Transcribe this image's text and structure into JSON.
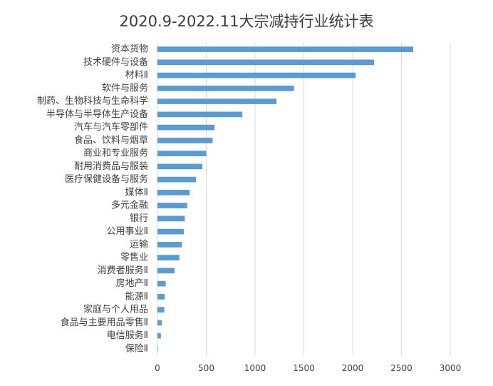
{
  "chart_data": {
    "type": "bar",
    "orientation": "horizontal",
    "title": "2020.9-2022.11大宗减持行业统计表",
    "xlabel": "",
    "ylabel": "",
    "xlim": [
      0,
      3000
    ],
    "xticks": [
      "0",
      "500",
      "1000",
      "1500",
      "2000",
      "2500",
      "3000"
    ],
    "grid": true,
    "legend": "none",
    "bar_color": "#5b9bd5",
    "grid_color": "#d9d9d9",
    "categories": [
      "资本货物",
      "技术硬件与设备",
      "材料Ⅱ",
      "软件与服务",
      "制药、生物科技与生命科学",
      "半导体与半导体生产设备",
      "汽车与汽车零部件",
      "食品、饮料与烟草",
      "商业和专业服务",
      "耐用消费品与服装",
      "医疗保健设备与服务",
      "媒体Ⅱ",
      "多元金融",
      "银行",
      "公用事业Ⅱ",
      "运输",
      "零售业",
      "消费者服务Ⅱ",
      "房地产Ⅱ",
      "能源Ⅱ",
      "家庭与个人用品",
      "食品与主要用品零售Ⅱ",
      "电信服务Ⅱ",
      "保险Ⅱ"
    ],
    "values": [
      2620,
      2220,
      2030,
      1400,
      1220,
      870,
      585,
      565,
      500,
      460,
      395,
      330,
      305,
      280,
      270,
      250,
      225,
      175,
      85,
      75,
      70,
      45,
      35,
      5
    ]
  }
}
